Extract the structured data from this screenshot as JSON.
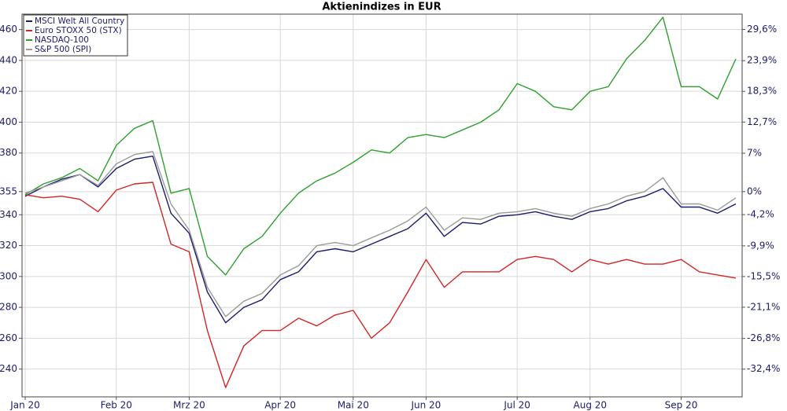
{
  "chart_data": {
    "type": "line",
    "title": "Aktienindizes in EUR",
    "categories": [
      "Jan 20",
      null,
      null,
      null,
      null,
      "Feb 20",
      null,
      null,
      null,
      "Mrz 20",
      null,
      null,
      null,
      null,
      "Apr 20",
      null,
      null,
      null,
      "Mai 20",
      null,
      null,
      null,
      "Jun 20",
      null,
      null,
      null,
      null,
      "Jul 20",
      null,
      null,
      null,
      "Aug 20",
      null,
      null,
      null,
      null,
      "Sep 20",
      null,
      null,
      null
    ],
    "series": [
      {
        "name": "MSCI Welt All Country",
        "color": "#1c1c6e",
        "values": [
          352,
          358,
          363,
          366,
          358,
          370,
          376,
          378,
          341,
          328,
          290,
          270,
          280,
          285,
          298,
          303,
          316,
          318,
          316,
          321,
          326,
          331,
          341,
          326,
          335,
          334,
          339,
          340,
          342,
          339,
          337,
          342,
          344,
          349,
          352,
          357,
          345,
          345,
          341,
          347
        ]
      },
      {
        "name": "Euro STOXX 50 (STX)",
        "color": "#d42424",
        "values": [
          353,
          351,
          352,
          350,
          342,
          356,
          360,
          361,
          321,
          316,
          265,
          228,
          255,
          265,
          265,
          273,
          268,
          275,
          278,
          260,
          270,
          290,
          311,
          293,
          303,
          303,
          303,
          311,
          313,
          311,
          303,
          311,
          308,
          311,
          308,
          308,
          311,
          303,
          301,
          299
        ]
      },
      {
        "name": "NASDAQ-100",
        "color": "#2ea02e",
        "values": [
          353,
          360,
          364,
          370,
          362,
          385,
          396,
          401,
          354,
          357,
          313,
          301,
          318,
          326,
          341,
          354,
          362,
          367,
          374,
          382,
          380,
          390,
          392,
          390,
          395,
          400,
          408,
          425,
          420,
          410,
          408,
          420,
          423,
          441,
          453,
          468,
          423,
          423,
          415,
          441
        ]
      },
      {
        "name": "S&P 500 (SPI)",
        "color": "#9a9a9a",
        "values": [
          354,
          358,
          362,
          366,
          359,
          373,
          379,
          381,
          347,
          330,
          293,
          274,
          284,
          289,
          301,
          307,
          320,
          322,
          320,
          325,
          330,
          336,
          345,
          330,
          338,
          337,
          341,
          342,
          344,
          341,
          339,
          344,
          347,
          352,
          355,
          364,
          347,
          347,
          343,
          351
        ]
      }
    ],
    "ylim": [
      222,
      470
    ],
    "yticks": [
      240,
      260,
      280,
      300,
      320,
      340,
      355,
      380,
      400,
      420,
      440,
      460
    ],
    "y2lim": [
      -37.46,
      32.39
    ],
    "y2ticks": [
      {
        "value": -32.4,
        "label": "-32,4%"
      },
      {
        "value": -26.8,
        "label": "-26,8%"
      },
      {
        "value": -21.1,
        "label": "-21,1%"
      },
      {
        "value": -15.5,
        "label": "-15,5%"
      },
      {
        "value": -9.9,
        "label": "-9,9%"
      },
      {
        "value": -4.2,
        "label": "-4,2%"
      },
      {
        "value": 0,
        "label": "0%"
      },
      {
        "value": 7,
        "label": "7%"
      },
      {
        "value": 12.7,
        "label": "12,7%"
      },
      {
        "value": 18.3,
        "label": "18,3%"
      },
      {
        "value": 23.9,
        "label": "23,9%"
      },
      {
        "value": 29.6,
        "label": "29,6%"
      }
    ],
    "grid": true,
    "legend": "top-left"
  }
}
